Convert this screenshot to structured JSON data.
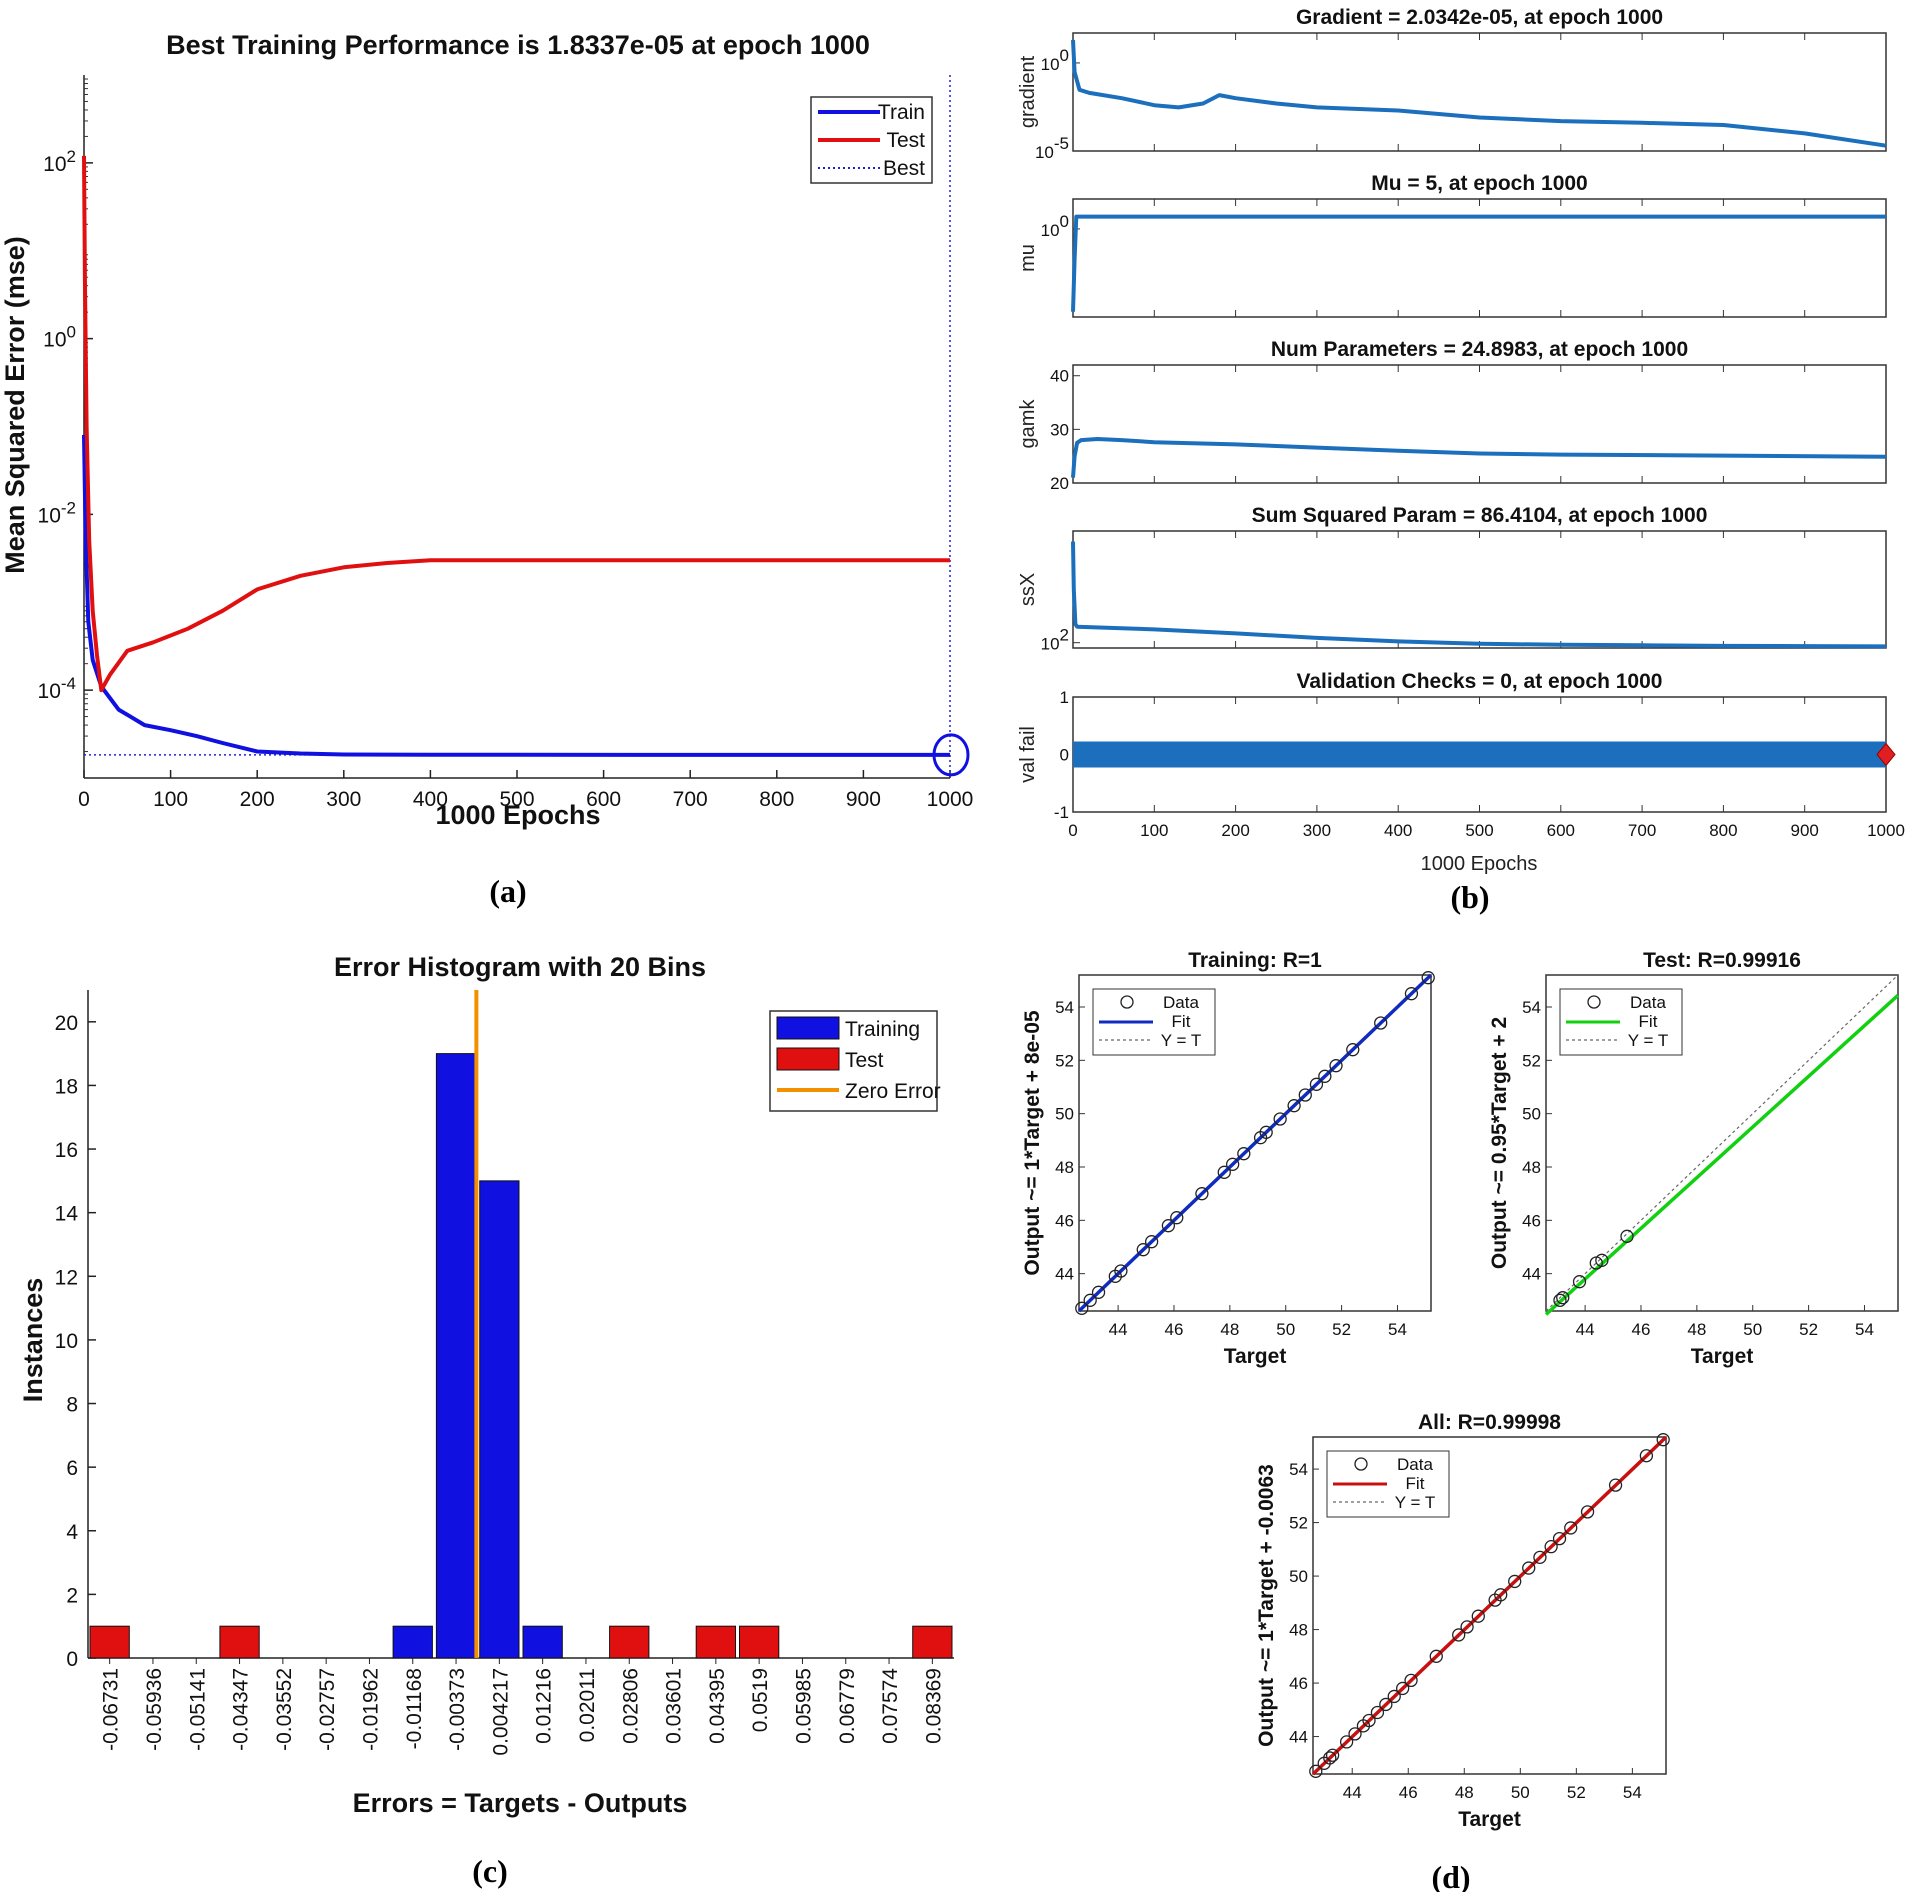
{
  "panels": {
    "a": "(a)",
    "b": "(b)",
    "c": "(c)",
    "d": "(d)"
  },
  "colors": {
    "train": "#1010e0",
    "test": "#e01010",
    "matlab_blue": "#1b6fbd",
    "zero": "#f29000",
    "fit_train": "#102cc0",
    "fit_test": "#10d010",
    "fit_all": "#c81010"
  },
  "chart_data": [
    {
      "id": "a",
      "type": "line",
      "title": "Best Training Performance is 1.8337e-05 at epoch 1000",
      "xlabel": "1000 Epochs",
      "ylabel": "Mean Squared Error  (mse)",
      "yscale": "log",
      "xlim": [
        0,
        1000
      ],
      "ylim": [
        1e-05,
        1000
      ],
      "xticks": [
        0,
        100,
        200,
        300,
        400,
        500,
        600,
        700,
        800,
        900,
        1000
      ],
      "yticks": [
        {
          "value": 0.0001,
          "base": "10",
          "exp": "-4"
        },
        {
          "value": 0.01,
          "base": "10",
          "exp": "-2"
        },
        {
          "value": 1,
          "base": "10",
          "exp": "0"
        },
        {
          "value": 100,
          "base": "10",
          "exp": "2"
        }
      ],
      "legend": [
        "Train",
        "Test",
        "Best"
      ],
      "legend_position": "top-right",
      "best": {
        "epoch": 1000,
        "value": 1.8337e-05
      },
      "series": [
        {
          "name": "Train",
          "x": [
            0,
            2,
            5,
            10,
            20,
            40,
            70,
            100,
            130,
            160,
            200,
            250,
            300,
            400,
            500,
            700,
            1000
          ],
          "y": [
            0.08,
            0.005,
            0.0006,
            0.00022,
            0.00011,
            6e-05,
            4e-05,
            3.5e-05,
            3e-05,
            2.5e-05,
            2e-05,
            1.9e-05,
            1.85e-05,
            1.84e-05,
            1.84e-05,
            1.83e-05,
            1.83e-05
          ]
        },
        {
          "name": "Test",
          "x": [
            0,
            1,
            3,
            6,
            10,
            15,
            20,
            30,
            50,
            80,
            120,
            160,
            200,
            250,
            300,
            350,
            400,
            500,
            700,
            1000
          ],
          "y": [
            120,
            5,
            0.1,
            0.005,
            0.0008,
            0.00025,
            0.0001,
            0.00015,
            0.00028,
            0.00035,
            0.0005,
            0.0008,
            0.0014,
            0.002,
            0.0025,
            0.0028,
            0.003,
            0.003,
            0.003,
            0.003
          ]
        }
      ]
    },
    {
      "id": "b",
      "type": "line",
      "xlabel": "1000 Epochs",
      "xlim": [
        0,
        1000
      ],
      "xticks": [
        0,
        100,
        200,
        300,
        400,
        500,
        600,
        700,
        800,
        900,
        1000
      ],
      "subplots": [
        {
          "title": "Gradient = 2.0342e-05, at epoch 1000",
          "ylabel": "gradient",
          "yscale": "log",
          "ylim": [
            1e-05,
            50
          ],
          "yticks": [
            {
              "value": 1,
              "base": "10",
              "exp": "0"
            },
            {
              "value": 1e-05,
              "base": "10",
              "exp": "-5"
            }
          ],
          "x": [
            0,
            2,
            8,
            20,
            60,
            100,
            130,
            160,
            180,
            200,
            250,
            300,
            400,
            500,
            600,
            700,
            800,
            900,
            1000
          ],
          "y": [
            20,
            0.3,
            0.03,
            0.02,
            0.01,
            0.004,
            0.003,
            0.005,
            0.015,
            0.01,
            0.005,
            0.003,
            0.002,
            0.0008,
            0.0005,
            0.0004,
            0.0003,
            0.0001,
            2e-05
          ]
        },
        {
          "title": "Mu = 5, at epoch 1000",
          "ylabel": "mu",
          "yscale": "log",
          "ylim": [
            1e-05,
            50
          ],
          "yticks": [
            {
              "value": 1,
              "base": "10",
              "exp": "0"
            }
          ],
          "x": [
            0,
            2,
            4,
            6,
            1000
          ],
          "y": [
            2e-05,
            0.02,
            5,
            5,
            5
          ]
        },
        {
          "title": "Num Parameters = 24.8983, at epoch 1000",
          "ylabel": "gamk",
          "yscale": "linear",
          "ylim": [
            20,
            42
          ],
          "yticks": [
            {
              "value": 20,
              "label": "20"
            },
            {
              "value": 30,
              "label": "30"
            },
            {
              "value": 40,
              "label": "40"
            }
          ],
          "x": [
            0,
            2,
            5,
            10,
            30,
            60,
            100,
            200,
            300,
            400,
            500,
            600,
            800,
            1000
          ],
          "y": [
            21,
            25,
            27.5,
            28,
            28.2,
            28,
            27.6,
            27.2,
            26.6,
            26,
            25.5,
            25.3,
            25.1,
            24.9
          ]
        },
        {
          "title": "Sum Squared Param = 86.4104, at epoch 1000",
          "ylabel": "ssX",
          "yscale": "linear",
          "ylim": [
            80,
            520
          ],
          "yticks": [
            {
              "value": 100,
              "base": "10",
              "exp": "2"
            }
          ],
          "x": [
            0,
            1,
            3,
            5,
            100,
            200,
            300,
            400,
            500,
            600,
            700,
            800,
            900,
            1000
          ],
          "y": [
            480,
            300,
            170,
            160,
            150,
            135,
            118,
            105,
            96,
            92,
            90,
            88,
            87,
            86
          ]
        },
        {
          "title": "Validation Checks = 0, at epoch 1000",
          "ylabel": "val fail",
          "yscale": "linear",
          "ylim": [
            -1,
            1
          ],
          "yticks": [
            {
              "value": -1,
              "label": "-1"
            },
            {
              "value": 0,
              "label": "0"
            },
            {
              "value": 1,
              "label": "1"
            }
          ],
          "x": [
            0,
            1000
          ],
          "y": [
            0,
            0
          ]
        }
      ]
    },
    {
      "id": "c",
      "type": "bar",
      "title": "Error Histogram with 20 Bins",
      "xlabel": "Errors = Targets - Outputs",
      "ylabel": "Instances",
      "ylim": [
        0,
        21
      ],
      "yticks": [
        0,
        2,
        4,
        6,
        8,
        10,
        12,
        14,
        16,
        18,
        20
      ],
      "legend": [
        "Training",
        "Test",
        "Zero Error"
      ],
      "legend_position": "top-right",
      "categories": [
        "-0.06731",
        "-0.05936",
        "-0.05141",
        "-0.04347",
        "-0.03552",
        "-0.02757",
        "-0.01962",
        "-0.01168",
        "-0.00373",
        "0.004217",
        "0.01216",
        "0.02011",
        "0.02806",
        "0.03601",
        "0.04395",
        "0.0519",
        "0.05985",
        "0.06779",
        "0.07574",
        "0.08369"
      ],
      "series": [
        {
          "name": "Training",
          "values": [
            0,
            0,
            0,
            0,
            0,
            0,
            0,
            1,
            19,
            15,
            1,
            0,
            0,
            0,
            0,
            0,
            0,
            0,
            0,
            0
          ]
        },
        {
          "name": "Test",
          "values": [
            1,
            0,
            0,
            1,
            0,
            0,
            0,
            0,
            0,
            0,
            0,
            0,
            1,
            0,
            1,
            1,
            0,
            0,
            0,
            1
          ]
        }
      ],
      "zero_error": 0
    },
    {
      "id": "d-train",
      "type": "scatter",
      "title": "Training: R=1",
      "xlabel": "Target",
      "ylabel": "Output ~= 1*Target + 8e-05",
      "xlim": [
        42.6,
        55.2
      ],
      "ylim": [
        42.6,
        55.2
      ],
      "ticks": [
        44,
        46,
        48,
        50,
        52,
        54
      ],
      "legend": [
        "Data",
        "Fit",
        "Y = T"
      ],
      "fit": {
        "slope": 1,
        "intercept": 8e-05
      },
      "x": [
        42.7,
        43.0,
        43.3,
        43.9,
        44.1,
        44.9,
        45.2,
        45.8,
        46.1,
        47.0,
        47.8,
        48.1,
        48.5,
        49.1,
        49.3,
        49.8,
        50.3,
        50.7,
        51.1,
        51.4,
        51.8,
        52.4,
        53.4,
        54.5,
        55.1
      ],
      "y": [
        42.7,
        43.0,
        43.3,
        43.9,
        44.1,
        44.9,
        45.2,
        45.8,
        46.1,
        47.0,
        47.8,
        48.1,
        48.5,
        49.1,
        49.3,
        49.8,
        50.3,
        50.7,
        51.1,
        51.4,
        51.8,
        52.4,
        53.4,
        54.5,
        55.1
      ]
    },
    {
      "id": "d-test",
      "type": "scatter",
      "title": "Test: R=0.99916",
      "xlabel": "Target",
      "ylabel": "Output ~= 0.95*Target + 2",
      "xlim": [
        42.6,
        55.2
      ],
      "ylim": [
        42.6,
        55.2
      ],
      "ticks": [
        44,
        46,
        48,
        50,
        52,
        54
      ],
      "legend": [
        "Data",
        "Fit",
        "Y = T"
      ],
      "fit": {
        "slope": 0.95,
        "intercept": 2
      },
      "x": [
        43.1,
        43.2,
        43.8,
        44.4,
        44.6,
        45.5
      ],
      "y": [
        43.0,
        43.1,
        43.7,
        44.4,
        44.5,
        45.4
      ]
    },
    {
      "id": "d-all",
      "type": "scatter",
      "title": "All: R=0.99998",
      "xlabel": "Target",
      "ylabel": "Output ~= 1*Target + -0.0063",
      "xlim": [
        42.6,
        55.2
      ],
      "ylim": [
        42.6,
        55.2
      ],
      "ticks": [
        44,
        46,
        48,
        50,
        52,
        54
      ],
      "legend": [
        "Data",
        "Fit",
        "Y = T"
      ],
      "fit": {
        "slope": 1,
        "intercept": -0.0063
      },
      "x": [
        42.7,
        43.0,
        43.2,
        43.3,
        43.8,
        44.1,
        44.4,
        44.6,
        44.9,
        45.2,
        45.5,
        45.8,
        46.1,
        47.0,
        47.8,
        48.1,
        48.5,
        49.1,
        49.3,
        49.8,
        50.3,
        50.7,
        51.1,
        51.4,
        51.8,
        52.4,
        53.4,
        54.5,
        55.1
      ],
      "y": [
        42.7,
        43.0,
        43.2,
        43.3,
        43.8,
        44.1,
        44.4,
        44.6,
        44.9,
        45.2,
        45.5,
        45.8,
        46.1,
        47.0,
        47.8,
        48.1,
        48.5,
        49.1,
        49.3,
        49.8,
        50.3,
        50.7,
        51.1,
        51.4,
        51.8,
        52.4,
        53.4,
        54.5,
        55.1
      ]
    }
  ]
}
